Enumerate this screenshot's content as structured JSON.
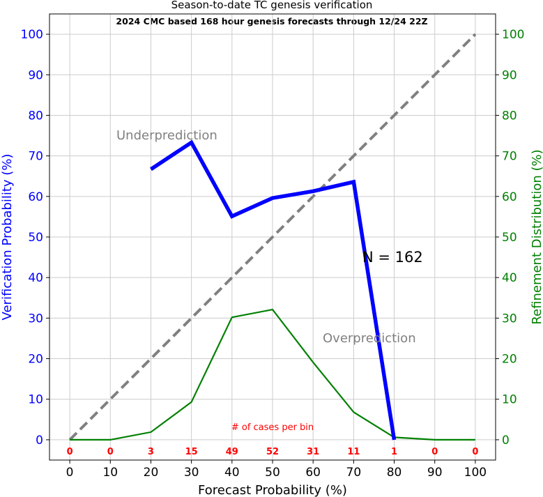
{
  "chart_data": {
    "type": "line",
    "title": "Season-to-date TC genesis verification",
    "subtitle": "2024 CMC based 168 hour genesis forecasts through 12/24 22Z",
    "xlabel": "Forecast Probability (%)",
    "ylabel": "Verification Probability (%)",
    "ylabel_right": "Refinement Distribution (%)",
    "xlim": [
      -5,
      105
    ],
    "ylim": [
      -5,
      105
    ],
    "x_ticks": [
      0,
      10,
      20,
      30,
      40,
      50,
      60,
      70,
      80,
      90,
      100
    ],
    "y_ticks": [
      0,
      10,
      20,
      30,
      40,
      50,
      60,
      70,
      80,
      90,
      100
    ],
    "grid": true,
    "colors": {
      "verification": "#0000ff",
      "refinement": "#008000",
      "perfect": "#808080",
      "counts": "#ff0000",
      "annotation": "#808080"
    },
    "series": [
      {
        "key": "verification",
        "x": [
          20,
          30,
          40,
          50,
          60,
          70,
          80
        ],
        "y": [
          66.7,
          73.3,
          55.1,
          59.6,
          61.3,
          63.6,
          0
        ]
      },
      {
        "key": "refinement",
        "x": [
          0,
          10,
          20,
          30,
          40,
          50,
          60,
          70,
          80,
          90,
          100
        ],
        "y": [
          0,
          0,
          1.9,
          9.3,
          30.2,
          32.1,
          19.1,
          6.8,
          0.6,
          0,
          0
        ]
      },
      {
        "key": "perfect",
        "x": [
          0,
          100
        ],
        "y": [
          0,
          100
        ]
      }
    ],
    "counts_label": "# of cases per bin",
    "counts": {
      "x": [
        0,
        10,
        20,
        30,
        40,
        50,
        60,
        70,
        80,
        90,
        100
      ],
      "values": [
        "0",
        "0",
        "3",
        "15",
        "49",
        "52",
        "31",
        "11",
        "1",
        "0",
        "0"
      ]
    },
    "annotations": {
      "underprediction": "Underprediction",
      "overprediction": "Overprediction",
      "n_label": "N = 162"
    }
  }
}
